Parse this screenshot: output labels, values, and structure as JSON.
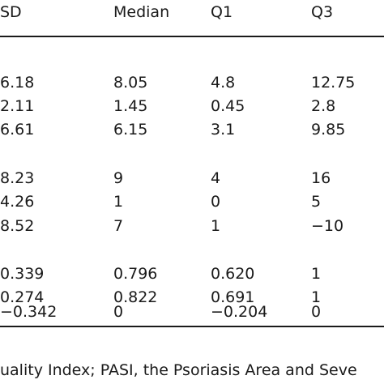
{
  "table": {
    "headers": [
      "SD",
      "Median",
      "Q1",
      "Q3"
    ],
    "groups": [
      {
        "rows": [
          [
            "6.18",
            "8.05",
            "4.8",
            "12.75"
          ],
          [
            "2.11",
            "1.45",
            "0.45",
            "2.8"
          ],
          [
            "6.61",
            "6.15",
            "3.1",
            "9.85"
          ]
        ]
      },
      {
        "rows": [
          [
            "8.23",
            "9",
            "4",
            "16"
          ],
          [
            "4.26",
            "1",
            "0",
            "5"
          ],
          [
            "8.52",
            "7",
            "1",
            "−10"
          ]
        ]
      },
      {
        "rows": [
          [
            "0.339",
            "0.796",
            "0.620",
            "1"
          ],
          [
            "0.274",
            "0.822",
            "0.691",
            "1"
          ],
          [
            "−0.342",
            "0",
            "−0.204",
            "0"
          ]
        ]
      }
    ]
  },
  "footnote": "uality Index; PASI, the Psoriasis Area and Seve"
}
